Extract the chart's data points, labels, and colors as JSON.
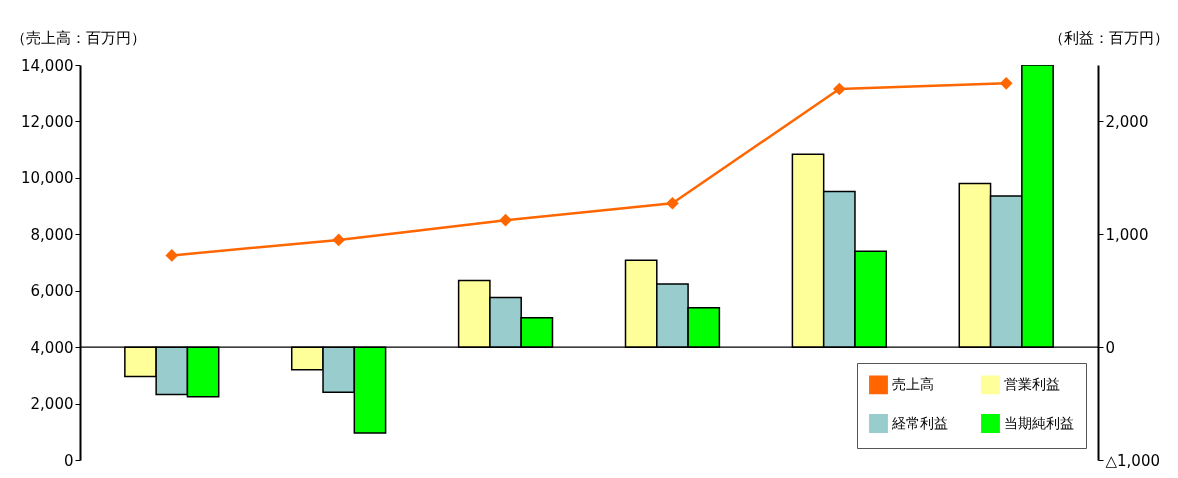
{
  "chart_data": {
    "type": "bar",
    "ylabel": "（売上高：百万円）",
    "y2label": "（利益：百万円）",
    "categories": [
      null,
      null,
      null,
      null,
      null,
      null
    ],
    "series": [
      {
        "name": "売上高",
        "type": "line",
        "color": "#ff6600",
        "marker": "diamond",
        "values": [
          7250,
          7800,
          8500,
          9100,
          13150,
          13350
        ]
      },
      {
        "name": "営業利益",
        "axis": "y2",
        "color": "#ffff99",
        "values": [
          -260,
          -200,
          590,
          770,
          1710,
          1450
        ]
      },
      {
        "name": "経常利益",
        "axis": "y2",
        "color": "#99cccc",
        "values": [
          -420,
          -400,
          440,
          560,
          1380,
          1340
        ]
      },
      {
        "name": "当期純利益",
        "axis": "y2",
        "color": "#00ff00",
        "values": [
          -440,
          -760,
          260,
          350,
          850,
          2500
        ]
      }
    ],
    "ylim": [
      0,
      14000
    ],
    "yticks": [
      0,
      {
        "value": 2000,
        "label": "2,000"
      },
      {
        "value": 4000,
        "label": "4,000"
      },
      {
        "value": 6000,
        "label": "6,000"
      },
      {
        "value": 8000,
        "label": "8,000"
      },
      {
        "value": 10000,
        "label": "10,000"
      },
      {
        "value": 12000,
        "label": "12,000"
      },
      {
        "value": 14000,
        "label": "14,000"
      }
    ],
    "y2lim": [
      -1000,
      2500
    ],
    "y2ticks": [
      {
        "value": -1000,
        "label": "△1,000"
      },
      0,
      {
        "value": 1000,
        "label": "1,000"
      },
      {
        "value": 2000,
        "label": "2,000"
      }
    ],
    "ref_lines": [
      {
        "axis": "y2",
        "value": 0,
        "color": "#000000"
      }
    ],
    "grid": false,
    "legend": "bottom right"
  }
}
